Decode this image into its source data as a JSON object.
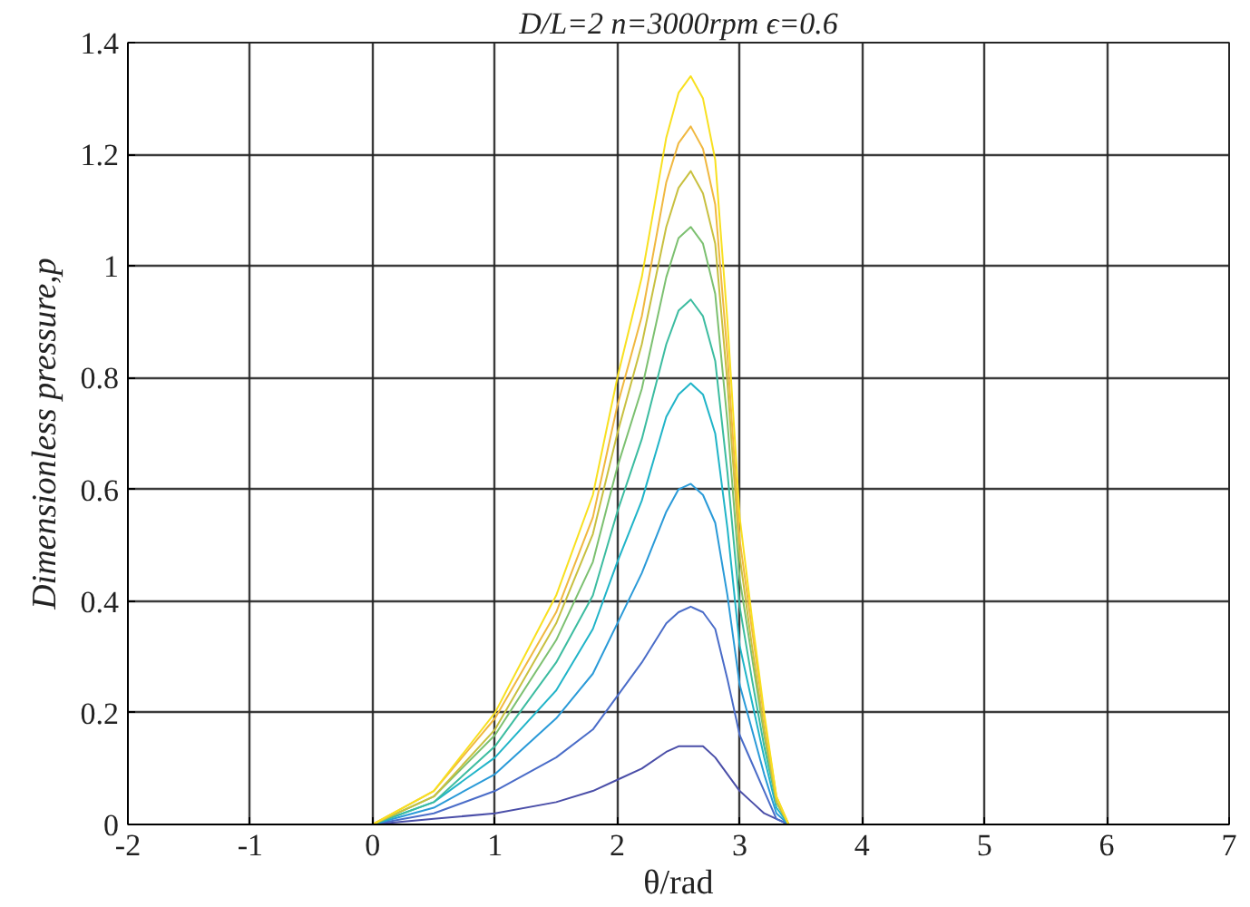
{
  "chart_data": {
    "type": "line",
    "title": "D/L=2 n=3000rpm ϵ=0.6",
    "xlabel": "θ/rad",
    "ylabel": "Dimensionless pressure,p",
    "x": [
      0,
      0.5,
      1.0,
      1.5,
      1.8,
      2.0,
      2.2,
      2.4,
      2.5,
      2.6,
      2.7,
      2.8,
      2.9,
      3.0,
      3.1,
      3.2,
      3.3,
      3.4
    ],
    "series": [
      {
        "color": "#4a4ea8",
        "values": [
          0,
          0.01,
          0.02,
          0.04,
          0.06,
          0.08,
          0.1,
          0.13,
          0.14,
          0.14,
          0.14,
          0.12,
          0.09,
          0.06,
          0.04,
          0.02,
          0.01,
          0
        ]
      },
      {
        "color": "#4a6cc8",
        "values": [
          0,
          0.02,
          0.06,
          0.12,
          0.17,
          0.23,
          0.29,
          0.36,
          0.38,
          0.39,
          0.38,
          0.35,
          0.26,
          0.16,
          0.11,
          0.06,
          0.01,
          0
        ]
      },
      {
        "color": "#2a9ad8",
        "values": [
          0,
          0.03,
          0.09,
          0.19,
          0.27,
          0.36,
          0.45,
          0.56,
          0.6,
          0.61,
          0.59,
          0.54,
          0.41,
          0.25,
          0.17,
          0.09,
          0.02,
          0
        ]
      },
      {
        "color": "#20b4c8",
        "values": [
          0,
          0.04,
          0.12,
          0.24,
          0.35,
          0.47,
          0.58,
          0.73,
          0.77,
          0.79,
          0.77,
          0.7,
          0.53,
          0.32,
          0.22,
          0.12,
          0.03,
          0
        ]
      },
      {
        "color": "#3cbca0",
        "values": [
          0,
          0.04,
          0.14,
          0.29,
          0.41,
          0.56,
          0.69,
          0.86,
          0.92,
          0.94,
          0.91,
          0.83,
          0.63,
          0.39,
          0.26,
          0.14,
          0.04,
          0
        ]
      },
      {
        "color": "#7cc070",
        "values": [
          0,
          0.05,
          0.16,
          0.33,
          0.47,
          0.64,
          0.78,
          0.98,
          1.05,
          1.07,
          1.04,
          0.95,
          0.72,
          0.44,
          0.3,
          0.16,
          0.04,
          0
        ]
      },
      {
        "color": "#c8c040",
        "values": [
          0,
          0.05,
          0.17,
          0.36,
          0.52,
          0.7,
          0.86,
          1.07,
          1.14,
          1.17,
          1.13,
          1.04,
          0.79,
          0.48,
          0.32,
          0.17,
          0.04,
          0
        ]
      },
      {
        "color": "#f0b840",
        "values": [
          0,
          0.06,
          0.19,
          0.38,
          0.55,
          0.75,
          0.91,
          1.15,
          1.22,
          1.25,
          1.21,
          1.11,
          0.84,
          0.51,
          0.35,
          0.19,
          0.05,
          0
        ]
      },
      {
        "color": "#f8e020",
        "values": [
          0,
          0.06,
          0.2,
          0.41,
          0.59,
          0.8,
          0.98,
          1.23,
          1.31,
          1.34,
          1.3,
          1.19,
          0.9,
          0.55,
          0.37,
          0.2,
          0.05,
          0
        ]
      }
    ],
    "xlim": [
      -2,
      7
    ],
    "ylim": [
      0,
      1.4
    ],
    "xticks": [
      -2,
      -1,
      0,
      1,
      2,
      3,
      4,
      5,
      6,
      7
    ],
    "yticks": [
      0,
      0.2,
      0.4,
      0.6,
      0.8,
      1,
      1.2,
      1.4
    ],
    "grid": true,
    "marker": "none",
    "line_style": "solid"
  }
}
